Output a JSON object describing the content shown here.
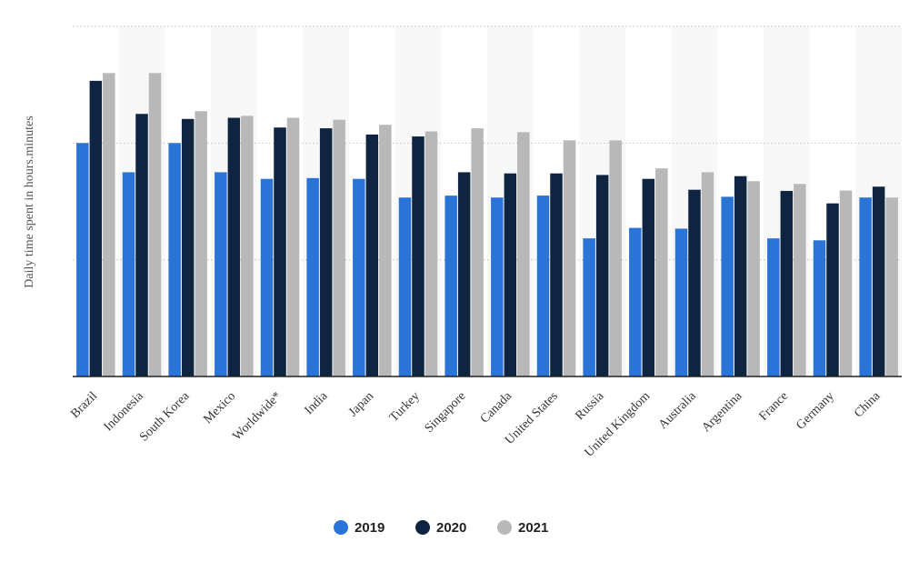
{
  "chart_data": {
    "type": "bar",
    "title": "",
    "xlabel": "",
    "ylabel": "Daily time spent in hours.minutes",
    "categories": [
      "Brazil",
      "Indonesia",
      "South Korea",
      "Mexico",
      "Worldwide*",
      "India",
      "Japan",
      "Turkey",
      "Singapore",
      "Canada",
      "United States",
      "Russia",
      "United Kingdom",
      "Australia",
      "Argentina",
      "France",
      "Germany",
      "China"
    ],
    "series": [
      {
        "name": "2019",
        "color": "#2a73d9",
        "values": [
          6.0,
          5.25,
          6.0,
          5.25,
          5.08,
          5.1,
          5.08,
          4.6,
          4.65,
          4.6,
          4.65,
          3.55,
          3.82,
          3.8,
          4.62,
          3.55,
          3.5,
          4.6
        ]
      },
      {
        "name": "2020",
        "color": "#0f2440",
        "values": [
          7.6,
          6.75,
          6.62,
          6.65,
          6.4,
          6.38,
          6.22,
          6.17,
          5.25,
          5.22,
          5.22,
          5.18,
          5.08,
          4.8,
          5.15,
          4.77,
          4.45,
          4.88
        ]
      },
      {
        "name": "2021",
        "color": "#b8b8b8",
        "values": [
          7.8,
          7.8,
          6.82,
          6.7,
          6.65,
          6.6,
          6.47,
          6.3,
          6.38,
          6.28,
          6.07,
          6.07,
          5.35,
          5.25,
          5.02,
          4.95,
          4.78,
          4.6
        ]
      }
    ],
    "ylim": [
      0,
      9
    ],
    "yticks": [
      0,
      3,
      6,
      9
    ],
    "grid": true,
    "legend_position": "bottom-center",
    "alternating_column_shading": true
  }
}
